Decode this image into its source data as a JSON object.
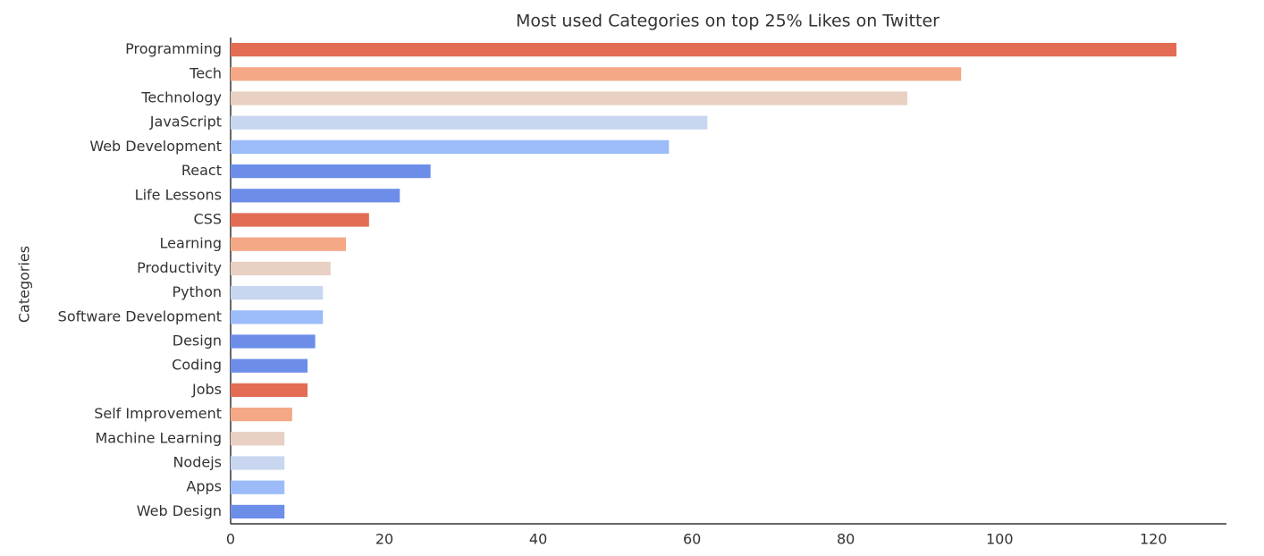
{
  "chart_data": {
    "type": "barh",
    "title": "Most used Categories on top 25% Likes on Twitter",
    "ylabel": "Categories",
    "categories": [
      "Programming",
      "Tech",
      "Technology",
      "JavaScript",
      "Web Development",
      "React",
      "Life Lessons",
      "CSS",
      "Learning",
      "Productivity",
      "Python",
      "Software Development",
      "Design",
      "Coding",
      "Jobs",
      "Self Improvement",
      "Machine Learning",
      "Nodejs",
      "Apps",
      "Web Design"
    ],
    "values": [
      123,
      95,
      88,
      62,
      57,
      26,
      22,
      18,
      15,
      13,
      12,
      12,
      11,
      10,
      10,
      8,
      7,
      7,
      7,
      7
    ],
    "colors": [
      "#e36c55",
      "#f5a886",
      "#e8d0c2",
      "#c9d6ef",
      "#9bbcf9",
      "#6c8ee8",
      "#6c8ee8",
      "#e36c55",
      "#f5a886",
      "#e8d0c2",
      "#c9d6ef",
      "#9bbcf9",
      "#6c8ee8",
      "#6c8ee8",
      "#e36c55",
      "#f5a886",
      "#e8d0c2",
      "#c9d6ef",
      "#9bbcf9",
      "#6c8ee8"
    ],
    "xlim": [
      0,
      129.5
    ],
    "xticks": [
      0,
      20,
      40,
      60,
      80,
      100,
      120
    ],
    "grid": false
  }
}
